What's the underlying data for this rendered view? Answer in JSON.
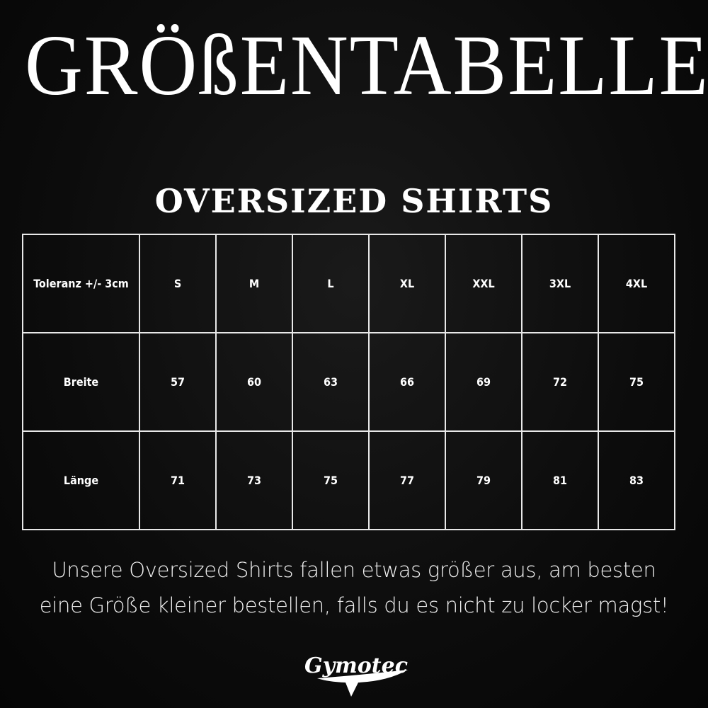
{
  "title": "GRÖßENTABELLE",
  "subtitle": "OVERSIZED SHIRTS",
  "table": {
    "header": [
      "Toleranz +/- 3cm",
      "S",
      "M",
      "L",
      "XL",
      "XXL",
      "3XL",
      "4XL"
    ],
    "rows": [
      [
        "Breite",
        "57",
        "60",
        "63",
        "66",
        "69",
        "72",
        "75"
      ],
      [
        "Länge",
        "71",
        "73",
        "75",
        "77",
        "79",
        "81",
        "83"
      ]
    ]
  },
  "note": {
    "line1": "Unsere Oversized Shirts fallen etwas größer aus, am besten",
    "line2": "eine Größe kleiner bestellen, falls du es nicht zu locker magst!"
  },
  "logo": {
    "text": "Gymotec"
  }
}
